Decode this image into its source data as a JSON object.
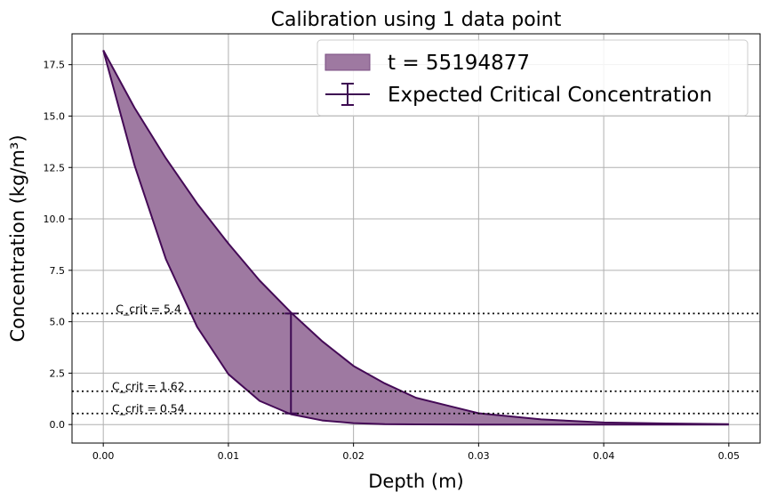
{
  "chart_data": {
    "type": "area",
    "title": "Calibration using 1 data point",
    "xlabel": "Depth (m)",
    "ylabel": "Concentration (kg/m³)",
    "xlim": [
      -0.0025,
      0.0525
    ],
    "ylim": [
      -0.9,
      19.0
    ],
    "x_ticks": [
      0.0,
      0.01,
      0.02,
      0.03,
      0.04,
      0.05
    ],
    "x_tick_labels": [
      "0.00",
      "0.01",
      "0.02",
      "0.03",
      "0.04",
      "0.05"
    ],
    "y_ticks": [
      0.0,
      2.5,
      5.0,
      7.5,
      10.0,
      12.5,
      15.0,
      17.5
    ],
    "y_tick_labels": [
      "0.0",
      "2.5",
      "5.0",
      "7.5",
      "10.0",
      "12.5",
      "15.0",
      "17.5"
    ],
    "grid": true,
    "legend_position": "top-right",
    "band": {
      "label": "t = 55194877",
      "fill_color": "#9e79a1",
      "edge_color": "#440a56",
      "x": [
        0.0,
        0.0025,
        0.005,
        0.0075,
        0.01,
        0.0125,
        0.015,
        0.0175,
        0.02,
        0.0225,
        0.025,
        0.03,
        0.035,
        0.04,
        0.045,
        0.05
      ],
      "upper": [
        18.2,
        15.4,
        12.95,
        10.75,
        8.8,
        7.0,
        5.45,
        4.05,
        2.85,
        2.0,
        1.3,
        0.55,
        0.25,
        0.1,
        0.05,
        0.02
      ],
      "lower": [
        18.2,
        12.6,
        8.05,
        4.75,
        2.45,
        1.15,
        0.5,
        0.2,
        0.07,
        0.02,
        0.01,
        0.0,
        0.0,
        0.0,
        0.0,
        0.0
      ]
    },
    "errorbar": {
      "label": "Expected Critical Concentration",
      "color": "#3d0a52",
      "x": 0.015,
      "y_low": 0.54,
      "y_high": 5.4
    },
    "critical_lines": [
      {
        "value": 5.4,
        "label": "C_crit = 5.4",
        "label_x": 0.001
      },
      {
        "value": 1.62,
        "label": "C_crit = 1.62",
        "label_x": 0.0007
      },
      {
        "value": 0.54,
        "label": "C_crit = 0.54",
        "label_x": 0.0007
      }
    ]
  }
}
